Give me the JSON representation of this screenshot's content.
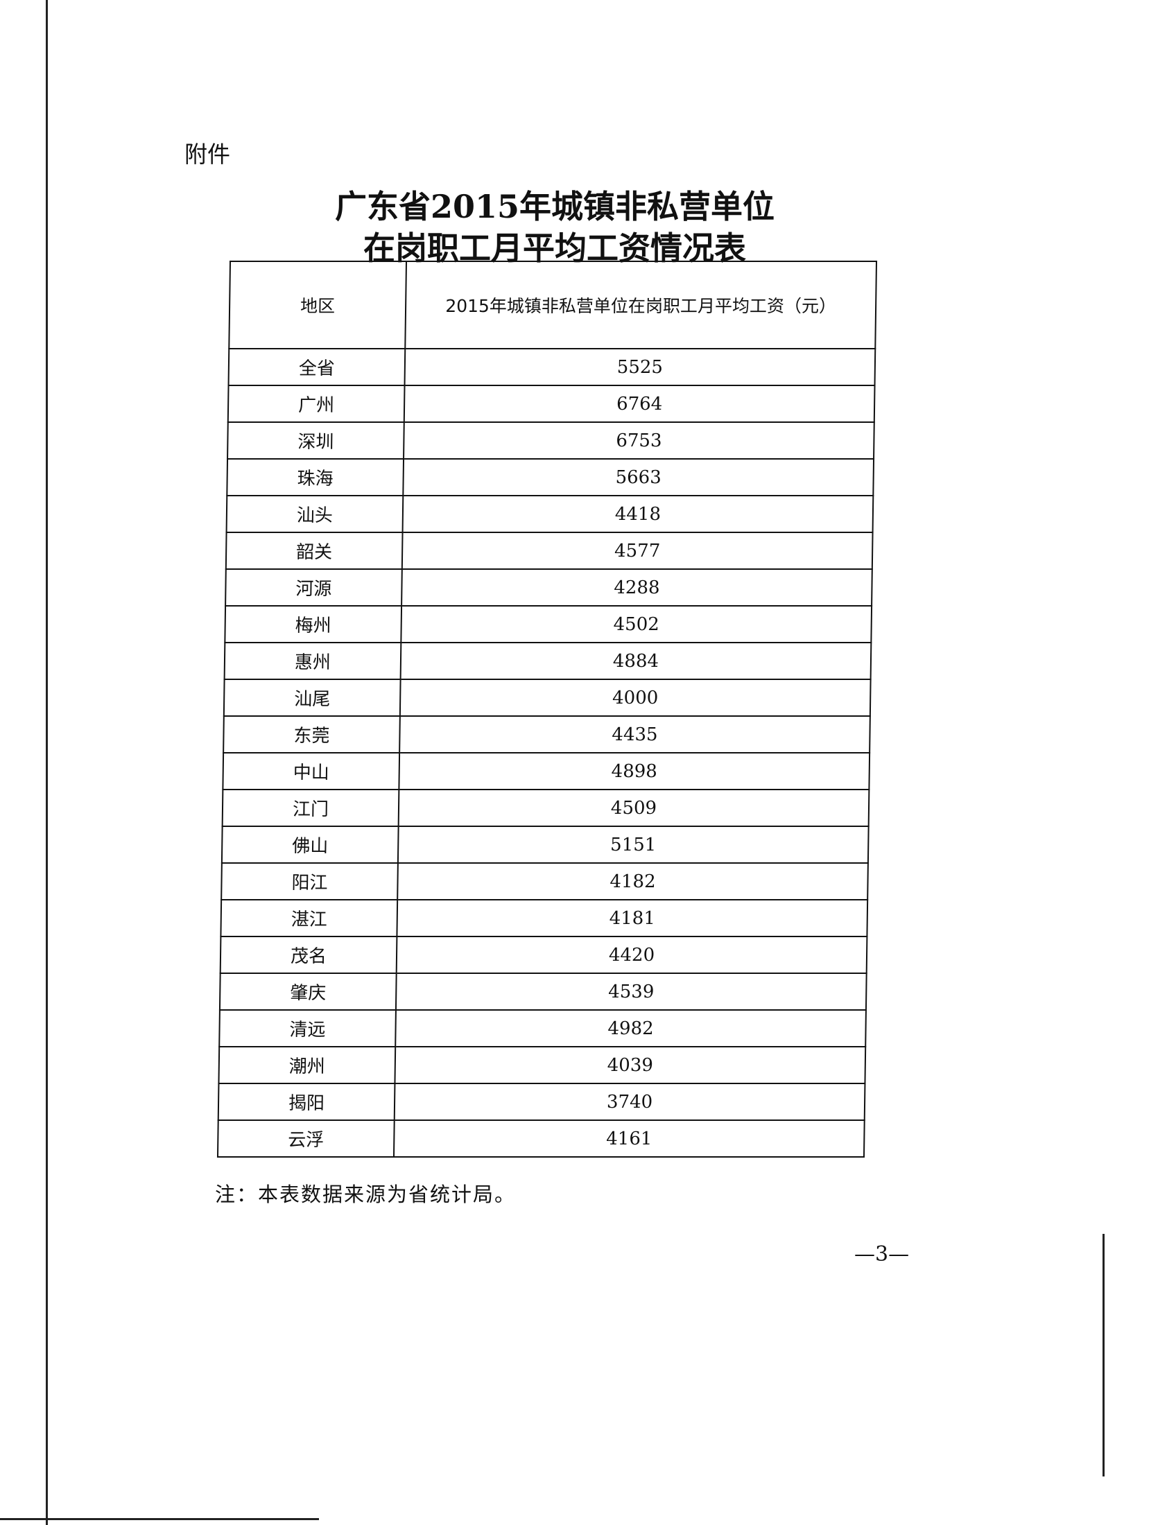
{
  "attachment_label": "附件",
  "title_line1": "广东省2015年城镇非私营单位",
  "title_line2": "在岗职工月平均工资情况表",
  "table": {
    "headers": [
      "地区",
      "2015年城镇非私营单位在岗职工月平均工资（元）"
    ],
    "rows": [
      {
        "region": "全省",
        "wage": "5525"
      },
      {
        "region": "广州",
        "wage": "6764"
      },
      {
        "region": "深圳",
        "wage": "6753"
      },
      {
        "region": "珠海",
        "wage": "5663"
      },
      {
        "region": "汕头",
        "wage": "4418"
      },
      {
        "region": "韶关",
        "wage": "4577"
      },
      {
        "region": "河源",
        "wage": "4288"
      },
      {
        "region": "梅州",
        "wage": "4502"
      },
      {
        "region": "惠州",
        "wage": "4884"
      },
      {
        "region": "汕尾",
        "wage": "4000"
      },
      {
        "region": "东莞",
        "wage": "4435"
      },
      {
        "region": "中山",
        "wage": "4898"
      },
      {
        "region": "江门",
        "wage": "4509"
      },
      {
        "region": "佛山",
        "wage": "5151"
      },
      {
        "region": "阳江",
        "wage": "4182"
      },
      {
        "region": "湛江",
        "wage": "4181"
      },
      {
        "region": "茂名",
        "wage": "4420"
      },
      {
        "region": "肇庆",
        "wage": "4539"
      },
      {
        "region": "清远",
        "wage": "4982"
      },
      {
        "region": "潮州",
        "wage": "4039"
      },
      {
        "region": "揭阳",
        "wage": "3740"
      },
      {
        "region": "云浮",
        "wage": "4161"
      }
    ]
  },
  "note": "注：本表数据来源为省统计局。",
  "page_number": "—3—"
}
